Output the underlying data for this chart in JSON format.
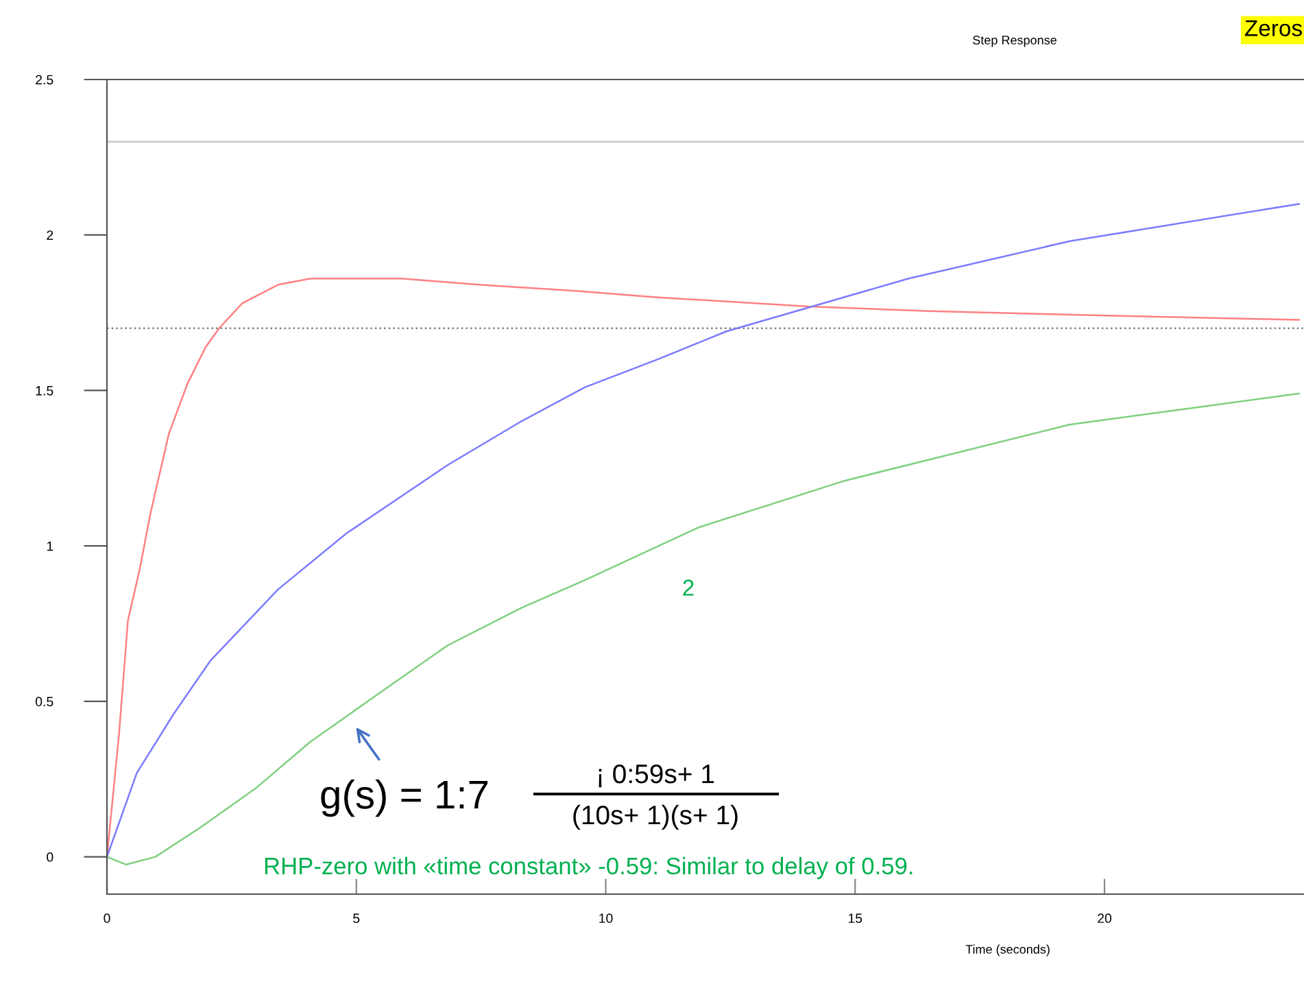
{
  "chart_data": {
    "type": "line",
    "title": "Step Response",
    "xlabel": "Time (seconds)",
    "xlim": [
      0,
      24
    ],
    "ylim": [
      -0.12,
      2.5
    ],
    "xticks": [
      0,
      5,
      10,
      15,
      20
    ],
    "yticks": [
      0,
      0.5,
      1,
      1.5,
      2,
      2.5
    ],
    "grid": false,
    "marker": "none",
    "line_style": "solid",
    "series": [
      {
        "color": "#ff8080",
        "x": [
          0,
          0.24,
          0.42,
          0.65,
          0.88,
          1.24,
          1.61,
          1.98,
          2.25,
          2.71,
          3.43,
          4.08,
          5.9,
          7.47,
          9.4,
          11.0,
          14.07,
          16.5,
          20.2,
          23.9
        ],
        "values": [
          0,
          0.39,
          0.76,
          0.92,
          1.11,
          1.36,
          1.52,
          1.64,
          1.7,
          1.78,
          1.84,
          1.86,
          1.86,
          1.84,
          1.82,
          1.8,
          1.77,
          1.755,
          1.74,
          1.727
        ]
      },
      {
        "color": "#7b7bff",
        "x": [
          0,
          0.6,
          1.34,
          2.07,
          3.43,
          4.8,
          6.83,
          8.3,
          9.58,
          11.04,
          12.42,
          16.07,
          19.3,
          23.9
        ],
        "values": [
          0,
          0.27,
          0.46,
          0.63,
          0.86,
          1.04,
          1.26,
          1.4,
          1.51,
          1.6,
          1.69,
          1.86,
          1.98,
          2.1
        ]
      },
      {
        "color": "#7fd07f",
        "x": [
          0,
          0.38,
          0.97,
          1.88,
          2.98,
          4.08,
          5.36,
          6.83,
          8.3,
          9.58,
          11.87,
          14.8,
          19.3,
          23.9
        ],
        "values": [
          0,
          -0.025,
          0,
          0.095,
          0.22,
          0.37,
          0.515,
          0.68,
          0.8,
          0.89,
          1.06,
          1.21,
          1.39,
          1.49
        ]
      }
    ],
    "ref_lines": [
      {
        "axis": "y",
        "value": 2.3,
        "color": "#c8c8c8",
        "line_style": "solid"
      },
      {
        "axis": "y",
        "value": 1.7,
        "color": "#808080",
        "line_style": "dotted"
      }
    ],
    "annotations": [
      "Zeros",
      "2",
      "g(s) = 1:7",
      "¡ 0:59s+ 1",
      "(10s+ 1)(s+ 1)",
      "RHP-zero with «time constant» -0.59: Similar to delay of 0.59."
    ]
  }
}
